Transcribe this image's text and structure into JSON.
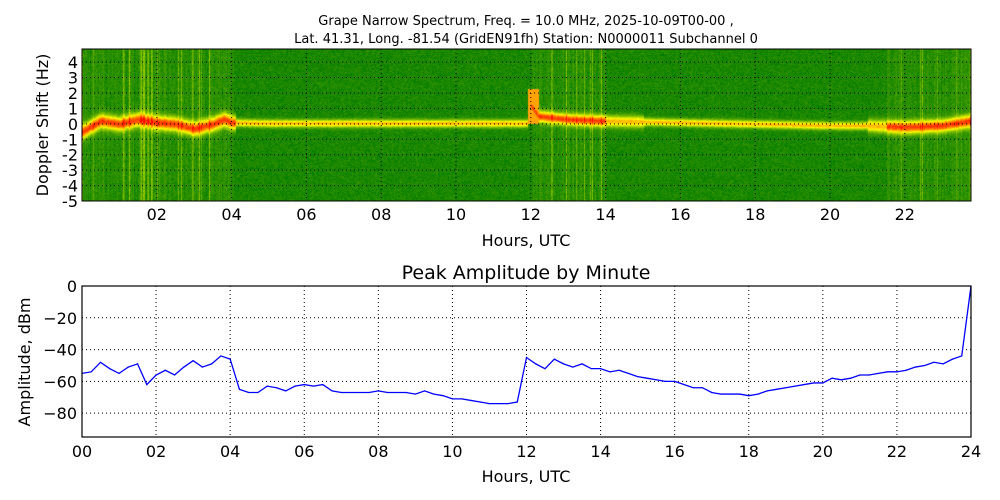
{
  "chart_data": [
    {
      "type": "heatmap",
      "title_line1": "Grape Narrow Spectrum, Freq. = 10.0 MHz, 2025-10-09T00-00 ,",
      "title_line2": "Lat.  41.31, Long. -81.54 (GridEN91fh) Station: N0000011 Subchannel 0",
      "xlabel": "Hours, UTC",
      "ylabel": "Doppler Shift (Hz)",
      "xlim": [
        0,
        23.77
      ],
      "ylim": [
        -5,
        4.85
      ],
      "xticks": [
        2,
        4,
        6,
        8,
        10,
        12,
        14,
        16,
        18,
        20,
        22
      ],
      "xtick_labels": [
        "02",
        "04",
        "06",
        "08",
        "10",
        "12",
        "14",
        "16",
        "18",
        "20",
        "22"
      ],
      "yticks": [
        4,
        3,
        2,
        1,
        0,
        -1,
        -2,
        -3,
        -4,
        -5
      ],
      "ytick_labels": [
        "4",
        "3",
        "2",
        "1",
        "0",
        "-1",
        "-2",
        "-3",
        "-4",
        "-5"
      ],
      "grid": true,
      "colormap": [
        "#007a00",
        "#ffff00",
        "#ff0000"
      ],
      "peak_doppler_trace": {
        "hours": [
          0,
          0.5,
          1,
          1.5,
          2,
          2.5,
          3,
          3.5,
          3.8,
          4,
          5,
          6,
          7,
          8,
          9,
          10,
          11,
          11.9,
          12.0,
          12.2,
          12.6,
          13,
          14,
          15,
          16,
          17,
          18,
          19,
          20,
          21,
          22,
          23,
          23.77
        ],
        "hz": [
          -0.5,
          0.2,
          0.0,
          0.3,
          0.1,
          0.0,
          -0.3,
          0.0,
          0.3,
          0.1,
          0.05,
          0.05,
          0.05,
          0.05,
          0.05,
          0.05,
          0.05,
          0.05,
          1.2,
          0.5,
          0.4,
          0.3,
          0.2,
          0.15,
          0.1,
          0.05,
          0.0,
          -0.05,
          -0.1,
          -0.1,
          -0.2,
          -0.1,
          0.2
        ]
      }
    },
    {
      "type": "line",
      "title": "Peak Amplitude by Minute",
      "xlabel": "Hours, UTC",
      "ylabel": "Amplitude, dBm",
      "xlim": [
        0,
        24
      ],
      "ylim": [
        -95,
        0
      ],
      "xticks": [
        0,
        2,
        4,
        6,
        8,
        10,
        12,
        14,
        16,
        18,
        20,
        22,
        24
      ],
      "xtick_labels": [
        "00",
        "02",
        "04",
        "06",
        "08",
        "10",
        "12",
        "14",
        "16",
        "18",
        "20",
        "22",
        "24"
      ],
      "yticks": [
        0,
        -20,
        -40,
        -60,
        -80
      ],
      "ytick_labels": [
        "0",
        "−20",
        "−40",
        "−60",
        "−80"
      ],
      "grid": true,
      "color": "#0000ff",
      "x_step_hours": 0.25,
      "values": [
        -55,
        -54,
        -48,
        -52,
        -55,
        -51,
        -49,
        -62,
        -56,
        -53,
        -56,
        -51,
        -47,
        -51,
        -49,
        -44,
        -46,
        -65,
        -67,
        -67,
        -63,
        -64,
        -66,
        -63,
        -62,
        -63,
        -62,
        -66,
        -67,
        -67,
        -67,
        -67,
        -66,
        -67,
        -67,
        -67,
        -68,
        -66,
        -68,
        -69,
        -71,
        -71,
        -72,
        -73,
        -74,
        -74,
        -74,
        -73,
        -45,
        -49,
        -52,
        -46,
        -49,
        -51,
        -49,
        -52,
        -52,
        -54,
        -53,
        -55,
        -57,
        -58,
        -59,
        -60,
        -60,
        -62,
        -64,
        -64,
        -67,
        -68,
        -68,
        -68,
        -69,
        -68,
        -66,
        -65,
        -64,
        -63,
        -62,
        -61,
        -61,
        -58,
        -59,
        -58,
        -56,
        -56,
        -55,
        -54,
        -54,
        -53,
        -51,
        -50,
        -48,
        -49,
        -46,
        -44,
        0
      ]
    }
  ]
}
